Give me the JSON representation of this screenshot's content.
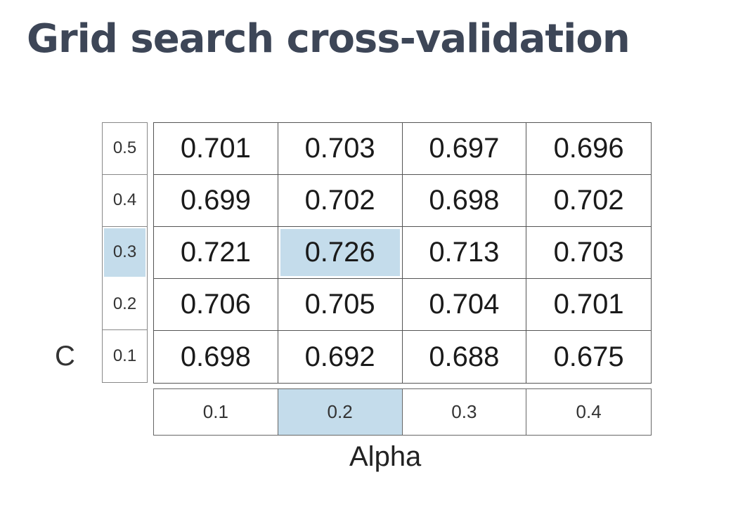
{
  "title": "Grid search cross-validation",
  "row_axis_label": "C",
  "col_axis_label": "Alpha",
  "highlight_color": "#c4dceb",
  "chart_data": {
    "type": "heatmap",
    "title": "Grid search cross-validation",
    "xlabel": "Alpha",
    "ylabel": "C",
    "x": [
      "0.1",
      "0.2",
      "0.3",
      "0.4"
    ],
    "y": [
      "0.5",
      "0.4",
      "0.3",
      "0.2",
      "0.1"
    ],
    "values": [
      [
        "0.701",
        "0.703",
        "0.697",
        "0.696"
      ],
      [
        "0.699",
        "0.702",
        "0.698",
        "0.702"
      ],
      [
        "0.721",
        "0.726",
        "0.713",
        "0.703"
      ],
      [
        "0.706",
        "0.705",
        "0.704",
        "0.701"
      ],
      [
        "0.698",
        "0.692",
        "0.688",
        "0.675"
      ]
    ],
    "highlight": {
      "alpha": "0.2",
      "c": "0.3",
      "value": "0.726"
    }
  }
}
